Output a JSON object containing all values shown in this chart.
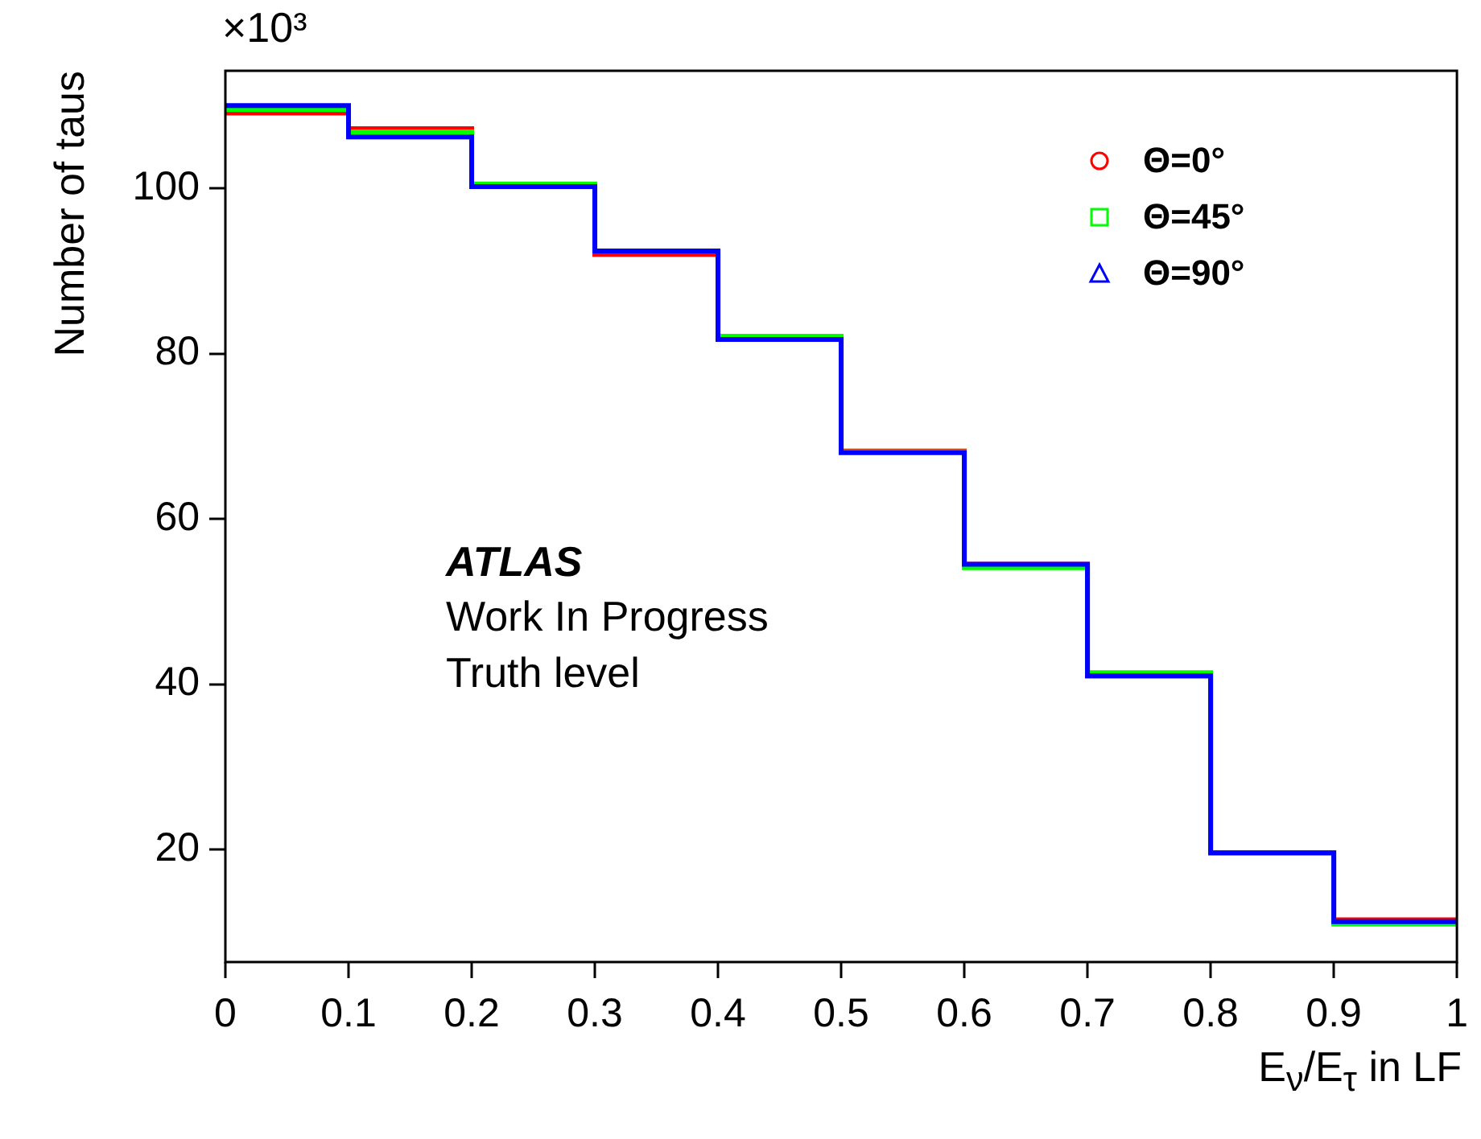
{
  "chart_data": {
    "type": "histogram",
    "xlabel": "E$_{ν}$/E$_{τ}$ in LF",
    "ylabel": "Number of taus",
    "annotations": [
      "×10³",
      "ATLAS",
      "Work In Progress",
      "Truth level"
    ],
    "bins": [
      0,
      0.1,
      0.2,
      0.3,
      0.4,
      0.5,
      0.6,
      0.7,
      0.8,
      0.9,
      1
    ],
    "series": [
      {
        "name": "Θ=0°",
        "color": "#ff0000",
        "marker": "circle",
        "values": [
          109.1,
          107.2,
          100.4,
          92.0,
          81.7,
          68.2,
          54.5,
          41.0,
          19.6,
          11.5
        ]
      },
      {
        "name": "Θ=45°",
        "color": "#00ff00",
        "marker": "square",
        "values": [
          109.5,
          106.8,
          100.5,
          92.4,
          82.1,
          68.1,
          54.1,
          41.4,
          19.6,
          11.0
        ]
      },
      {
        "name": "Θ=90°",
        "color": "#0000ff",
        "marker": "triangle",
        "values": [
          110.0,
          106.2,
          100.2,
          92.4,
          81.7,
          68.0,
          54.5,
          41.0,
          19.6,
          11.3
        ]
      }
    ],
    "xlim": [
      0,
      1
    ],
    "xticks": [
      0,
      0.1,
      0.2,
      0.3,
      0.4,
      0.5,
      0.6,
      0.7,
      0.8,
      0.9,
      1
    ],
    "ylim": [
      6.4,
      114.2
    ],
    "yticks": [
      20,
      40,
      60,
      80,
      100
    ],
    "legend": "top right"
  }
}
